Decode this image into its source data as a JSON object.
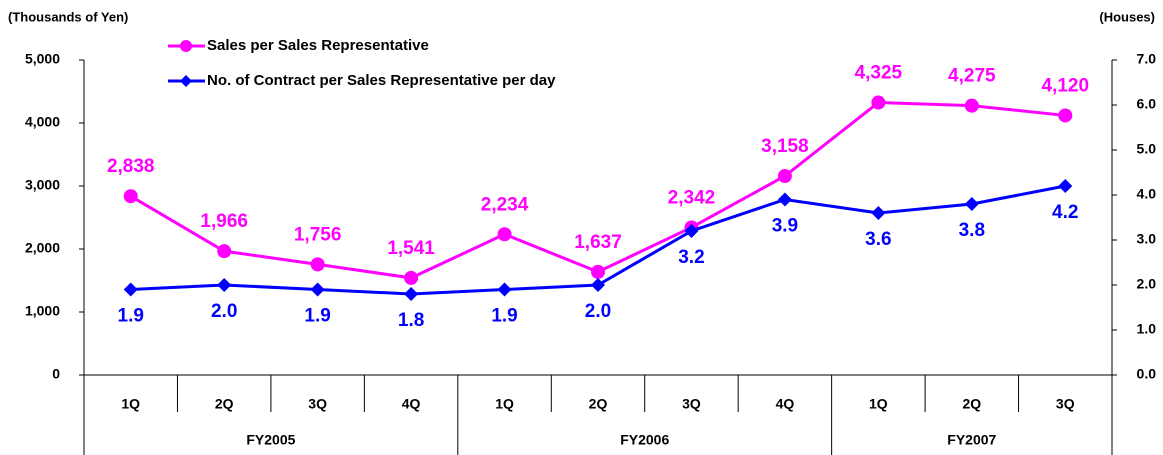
{
  "chart_data": {
    "type": "line",
    "y_label": "(Thousands of Yen)",
    "y2_label": "(Houses)",
    "groups": [
      {
        "name": "FY2005",
        "categories": [
          "1Q",
          "2Q",
          "3Q",
          "4Q"
        ]
      },
      {
        "name": "FY2006",
        "categories": [
          "1Q",
          "2Q",
          "3Q",
          "4Q"
        ]
      },
      {
        "name": "FY2007",
        "categories": [
          "1Q",
          "2Q",
          "3Q"
        ]
      }
    ],
    "series": [
      {
        "name": "Sales per Sales Representative",
        "color": "#ff00ff",
        "marker": "circle",
        "axis": "y",
        "values": [
          2838,
          1966,
          1756,
          1541,
          2234,
          1637,
          2342,
          3158,
          4325,
          4275,
          4120
        ],
        "value_labels": [
          "2,838",
          "1,966",
          "1,756",
          "1,541",
          "2,234",
          "1,637",
          "2,342",
          "3,158",
          "4,325",
          "4,275",
          "4,120"
        ]
      },
      {
        "name": "No. of Contract per Sales Representative per day",
        "color": "#0000ff",
        "marker": "diamond",
        "axis": "y2",
        "values": [
          1.9,
          2.0,
          1.9,
          1.8,
          1.9,
          2.0,
          3.2,
          3.9,
          3.6,
          3.8,
          4.2
        ],
        "value_labels": [
          "1.9",
          "2.0",
          "1.9",
          "1.8",
          "1.9",
          "2.0",
          "3.2",
          "3.9",
          "3.6",
          "3.8",
          "4.2"
        ]
      }
    ],
    "ylim": [
      0,
      5000
    ],
    "yticks": [
      0,
      {
        "value": 1000,
        "label": "1,000"
      },
      {
        "value": 2000,
        "label": "2,000"
      },
      {
        "value": 3000,
        "label": "3,000"
      },
      {
        "value": 4000,
        "label": "4,000"
      },
      {
        "value": 5000,
        "label": "5,000"
      }
    ],
    "y2lim": [
      0,
      7
    ],
    "y2ticks": [
      {
        "value": 0,
        "label": "0.0"
      },
      {
        "value": 1,
        "label": "1.0"
      },
      {
        "value": 2,
        "label": "2.0"
      },
      {
        "value": 3,
        "label": "3.0"
      },
      {
        "value": 4,
        "label": "4.0"
      },
      {
        "value": 5,
        "label": "5.0"
      },
      {
        "value": 6,
        "label": "6.0"
      },
      {
        "value": 7,
        "label": "7.0"
      }
    ],
    "grid": false
  }
}
